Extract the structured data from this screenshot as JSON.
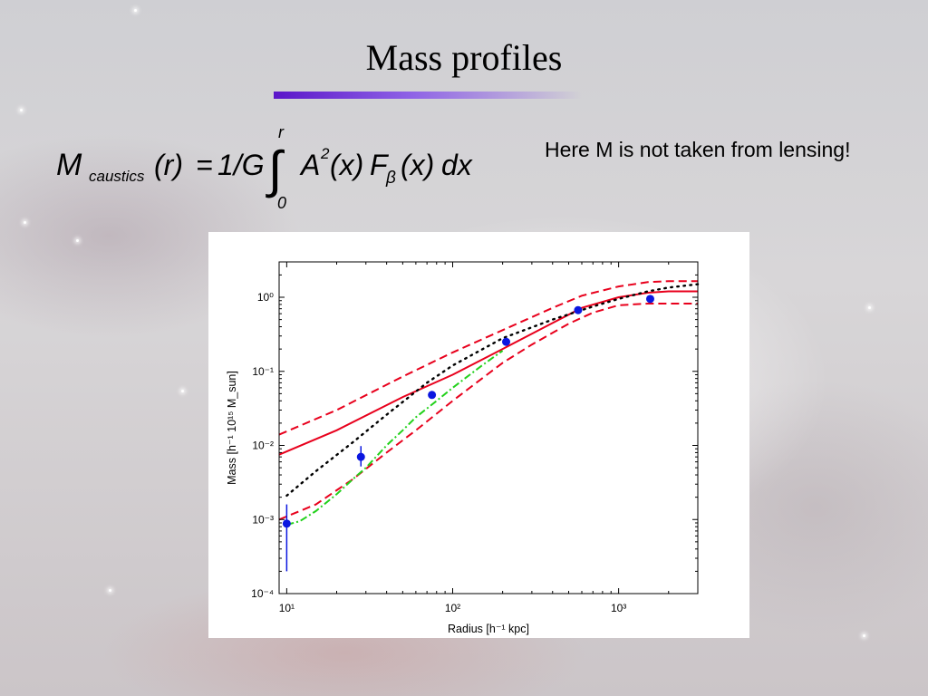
{
  "slide": {
    "title": "Mass profiles",
    "note": "Here M is not taken from lensing!",
    "accent_color": "#5b16c9"
  },
  "formula": {
    "lhs_symbol": "M",
    "lhs_subscript": "caustics",
    "lhs_arg": "(r)",
    "equals": "=",
    "factor": "1/G",
    "integral_sign": "∫",
    "upper_limit": "r",
    "lower_limit": "0",
    "integrand_A": "A",
    "integrand_A_power": "2",
    "integrand_A_arg": "(x)",
    "integrand_F": "F",
    "integrand_F_sub": "β",
    "integrand_F_arg": "(x)",
    "differential": "dx"
  },
  "chart_data": {
    "type": "line",
    "xlabel": "Radius [h⁻¹  kpc]",
    "ylabel": "Mass [h⁻¹  10¹⁵ M_sun]",
    "x_scale": "log",
    "y_scale": "log",
    "xlim": [
      9,
      3000
    ],
    "ylim": [
      0.0001,
      3
    ],
    "x_ticks": [
      {
        "value": 10,
        "label": "10¹"
      },
      {
        "value": 100,
        "label": "10²"
      },
      {
        "value": 1000,
        "label": "10³"
      }
    ],
    "y_ticks": [
      {
        "value": 0.0001,
        "label": "10⁻⁴"
      },
      {
        "value": 0.001,
        "label": "10⁻³"
      },
      {
        "value": 0.01,
        "label": "10⁻²"
      },
      {
        "value": 0.1,
        "label": "10⁻¹"
      },
      {
        "value": 1,
        "label": "10⁰"
      }
    ],
    "grid": false,
    "legend": false,
    "series": [
      {
        "style": "solid",
        "color": "#e8001c",
        "x": [
          9,
          20,
          50,
          100,
          200,
          400,
          600,
          1000,
          1500,
          2000,
          3000
        ],
        "y": [
          0.0075,
          0.016,
          0.045,
          0.09,
          0.2,
          0.45,
          0.72,
          1.0,
          1.15,
          1.2,
          1.2
        ]
      },
      {
        "style": "dashed",
        "color": "#e8001c",
        "x": [
          9,
          20,
          50,
          100,
          200,
          400,
          600,
          1000,
          1500,
          2000,
          3000
        ],
        "y": [
          0.014,
          0.03,
          0.085,
          0.18,
          0.36,
          0.72,
          1.05,
          1.4,
          1.6,
          1.65,
          1.65
        ]
      },
      {
        "style": "dashed",
        "color": "#e8001c",
        "x": [
          9,
          15,
          25,
          40,
          60,
          100,
          150,
          200,
          300,
          500,
          700,
          1000,
          1500,
          2000,
          3000
        ],
        "y": [
          0.001,
          0.0016,
          0.0035,
          0.008,
          0.016,
          0.04,
          0.08,
          0.13,
          0.23,
          0.44,
          0.62,
          0.78,
          0.82,
          0.82,
          0.82
        ]
      },
      {
        "style": "dotted",
        "color": "#000000",
        "x": [
          10,
          15,
          25,
          40,
          70,
          100,
          200,
          400,
          700,
          1000,
          1500,
          2000,
          3000
        ],
        "y": [
          0.0021,
          0.0045,
          0.011,
          0.026,
          0.07,
          0.12,
          0.28,
          0.5,
          0.75,
          0.95,
          1.2,
          1.35,
          1.5
        ]
      },
      {
        "style": "dashdot",
        "color": "#22d11b",
        "x": [
          10,
          12,
          15,
          20,
          25,
          30,
          40,
          50,
          60,
          80,
          100,
          150,
          200
        ],
        "y": [
          0.00085,
          0.00095,
          0.0013,
          0.0022,
          0.0035,
          0.005,
          0.01,
          0.016,
          0.024,
          0.04,
          0.06,
          0.12,
          0.19
        ]
      }
    ],
    "points": {
      "color": "#0a16e0",
      "x": [
        10,
        28,
        75,
        210,
        570,
        1550
      ],
      "y": [
        0.00088,
        0.007,
        0.048,
        0.25,
        0.67,
        0.95
      ],
      "err_low": [
        0.0002,
        0.0052,
        null,
        null,
        null,
        null
      ],
      "err_high": [
        0.0016,
        0.0098,
        null,
        null,
        null,
        null
      ]
    }
  }
}
